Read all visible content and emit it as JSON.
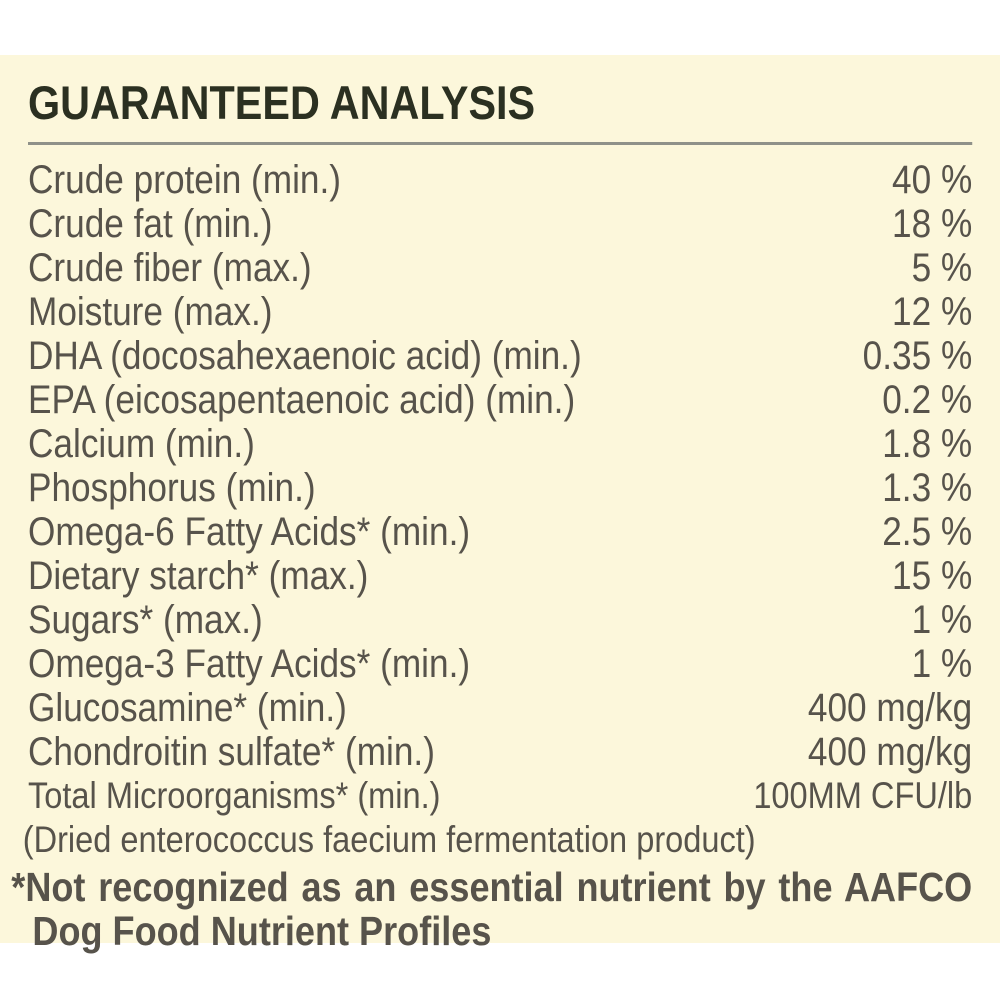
{
  "panel": {
    "title": "GUARANTEED ANALYSIS",
    "colors": {
      "panel_background": "#fcf7db",
      "title_text": "#2b3021",
      "body_text": "#57534b",
      "divider": "#8f9189",
      "page_background": "#ffffff"
    }
  },
  "table": {
    "rows": [
      {
        "label": "Crude protein (min.)",
        "value": "40 %"
      },
      {
        "label": "Crude fat (min.)",
        "value": "18 %"
      },
      {
        "label": "Crude fiber (max.)",
        "value": "5 %"
      },
      {
        "label": "Moisture (max.)",
        "value": "12 %"
      },
      {
        "label": "DHA (docosahexaenoic acid) (min.)",
        "value": "0.35 %"
      },
      {
        "label": "EPA (eicosapentaenoic acid) (min.)",
        "value": "0.2 %"
      },
      {
        "label": "Calcium (min.)",
        "value": "1.8 %"
      },
      {
        "label": "Phosphorus (min.)",
        "value": "1.3 %"
      },
      {
        "label": "Omega-6 Fatty Acids* (min.)",
        "value": "2.5 %"
      },
      {
        "label": "Dietary starch* (max.)",
        "value": "15 %"
      },
      {
        "label": "Sugars* (max.)",
        "value": "1 %"
      },
      {
        "label": "Omega-3 Fatty Acids* (min.)",
        "value": "1 %"
      },
      {
        "label": "Glucosamine* (min.)",
        "value": "400 mg/kg"
      },
      {
        "label": "Chondroitin sulfate* (min.)",
        "value": "400 mg/kg"
      },
      {
        "label": "Total Microorganisms* (min.)",
        "value": "100MM CFU/lb",
        "small": true
      }
    ],
    "note": "(Dried enterococcus faecium fermentation product)"
  },
  "footnote": {
    "line1": "*Not recognized as an essential nutrient by the AAFCO",
    "line2": "Dog Food Nutrient Profiles"
  }
}
